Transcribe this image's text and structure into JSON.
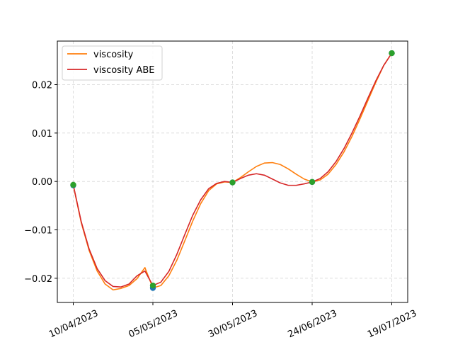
{
  "chart_data": {
    "type": "line",
    "x": [
      "10/04/2023",
      "05/05/2023",
      "30/05/2023",
      "24/06/2023",
      "19/07/2023"
    ],
    "series": [
      {
        "name": "viscosity",
        "color": "#ff7f0e",
        "marker_color": "#1f77b4",
        "points": [
          -0.0008,
          -0.022,
          -0.0002,
          -0.0001,
          0.0265
        ],
        "curve": [
          [
            0,
            -0.0008
          ],
          [
            0.1,
            -0.0085
          ],
          [
            0.2,
            -0.0143
          ],
          [
            0.3,
            -0.0185
          ],
          [
            0.4,
            -0.0212
          ],
          [
            0.5,
            -0.0224
          ],
          [
            0.6,
            -0.0221
          ],
          [
            0.7,
            -0.0215
          ],
          [
            0.8,
            -0.0201
          ],
          [
            0.9,
            -0.0178
          ],
          [
            1.0,
            -0.022
          ],
          [
            1.0,
            -0.022
          ],
          [
            1.1,
            -0.0215
          ],
          [
            1.2,
            -0.0195
          ],
          [
            1.3,
            -0.0163
          ],
          [
            1.4,
            -0.0123
          ],
          [
            1.5,
            -0.0082
          ],
          [
            1.6,
            -0.0046
          ],
          [
            1.7,
            -0.0019
          ],
          [
            1.8,
            -0.0005
          ],
          [
            1.9,
            -0.0001
          ],
          [
            2.0,
            -0.0002
          ],
          [
            2.1,
            0.0008
          ],
          [
            2.2,
            0.002
          ],
          [
            2.3,
            0.0031
          ],
          [
            2.4,
            0.0038
          ],
          [
            2.5,
            0.0039
          ],
          [
            2.6,
            0.0035
          ],
          [
            2.7,
            0.0026
          ],
          [
            2.8,
            0.0015
          ],
          [
            2.9,
            0.0005
          ],
          [
            3.0,
            -0.0001
          ],
          [
            3.1,
            0.0003
          ],
          [
            3.2,
            0.0015
          ],
          [
            3.3,
            0.0035
          ],
          [
            3.4,
            0.0061
          ],
          [
            3.5,
            0.0093
          ],
          [
            3.6,
            0.0129
          ],
          [
            3.7,
            0.0167
          ],
          [
            3.8,
            0.0205
          ],
          [
            3.9,
            0.024
          ],
          [
            4.0,
            0.0265
          ]
        ]
      },
      {
        "name": "viscosity ABE",
        "color": "#d62728",
        "marker_color": "#2ca02c",
        "points": [
          -0.0007,
          -0.0215,
          -0.0002,
          -0.0001,
          0.0265
        ],
        "curve": [
          [
            0,
            -0.0007
          ],
          [
            0.1,
            -0.0083
          ],
          [
            0.2,
            -0.014
          ],
          [
            0.3,
            -0.018
          ],
          [
            0.4,
            -0.0205
          ],
          [
            0.5,
            -0.0217
          ],
          [
            0.6,
            -0.0218
          ],
          [
            0.7,
            -0.0212
          ],
          [
            0.8,
            -0.0195
          ],
          [
            0.9,
            -0.0185
          ],
          [
            1.0,
            -0.0215
          ],
          [
            1.1,
            -0.0208
          ],
          [
            1.2,
            -0.0186
          ],
          [
            1.3,
            -0.0151
          ],
          [
            1.4,
            -0.011
          ],
          [
            1.5,
            -0.007
          ],
          [
            1.6,
            -0.0038
          ],
          [
            1.7,
            -0.0015
          ],
          [
            1.8,
            -0.0004
          ],
          [
            1.9,
            0.0
          ],
          [
            2.0,
            -0.0002
          ],
          [
            2.1,
            0.0006
          ],
          [
            2.2,
            0.0013
          ],
          [
            2.3,
            0.0016
          ],
          [
            2.4,
            0.0013
          ],
          [
            2.5,
            0.0005
          ],
          [
            2.6,
            -0.0003
          ],
          [
            2.7,
            -0.0008
          ],
          [
            2.8,
            -0.0008
          ],
          [
            2.9,
            -0.0005
          ],
          [
            3.0,
            -0.0001
          ],
          [
            3.1,
            0.0006
          ],
          [
            3.2,
            0.002
          ],
          [
            3.3,
            0.0041
          ],
          [
            3.4,
            0.0068
          ],
          [
            3.5,
            0.01
          ],
          [
            3.6,
            0.0135
          ],
          [
            3.7,
            0.0172
          ],
          [
            3.8,
            0.0208
          ],
          [
            3.9,
            0.024
          ],
          [
            4.0,
            0.0265
          ]
        ]
      }
    ],
    "yticks": [
      -0.02,
      -0.01,
      0.0,
      0.01,
      0.02
    ],
    "ytick_labels": [
      "−0.02",
      "−0.01",
      "0.00",
      "0.01",
      "0.02"
    ],
    "ylim": [
      -0.025,
      0.029
    ],
    "xlim": [
      -0.2,
      4.2
    ],
    "grid": true,
    "legend_position": "top-left"
  }
}
